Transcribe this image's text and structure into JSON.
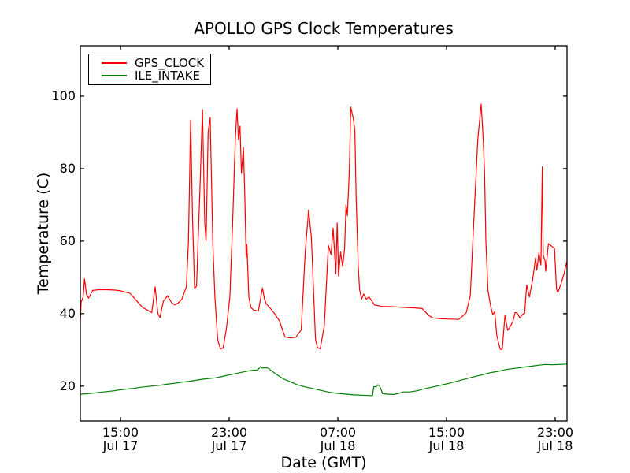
{
  "figure": {
    "background": "#ffffff",
    "title": "APOLLO GPS Clock Temperatures"
  },
  "chart_data": {
    "type": "line",
    "title": "APOLLO GPS Clock Temperatures",
    "xlabel": "Date (GMT)",
    "ylabel": "Temperature (C)",
    "x_unit": "hours since Jul 17 00:00 GMT",
    "xlim": [
      12.04,
      47.87
    ],
    "ylim": [
      10.4,
      113.9
    ],
    "grid": false,
    "tick_direction": "in",
    "x_ticks": [
      {
        "value": 15,
        "label": "15:00",
        "sublabel": "Jul 17"
      },
      {
        "value": 23,
        "label": "23:00",
        "sublabel": "Jul 17"
      },
      {
        "value": 31,
        "label": "07:00",
        "sublabel": "Jul 18"
      },
      {
        "value": 39,
        "label": "15:00",
        "sublabel": "Jul 18"
      },
      {
        "value": 47,
        "label": "23:00",
        "sublabel": "Jul 18"
      }
    ],
    "y_ticks": [
      20,
      40,
      60,
      80,
      100
    ],
    "legend": {
      "position": "upper left",
      "entries": [
        {
          "label": "GPS_CLOCK",
          "color": "#ff0000"
        },
        {
          "label": "ILE_INTAKE",
          "color": "#008000"
        }
      ]
    },
    "series": [
      {
        "name": "GPS_CLOCK",
        "color": "#ff0000",
        "points": [
          [
            12.05,
            38.5
          ],
          [
            12.1,
            43.2
          ],
          [
            12.25,
            44.6
          ],
          [
            12.35,
            49.6
          ],
          [
            12.5,
            45.2
          ],
          [
            12.65,
            44.3
          ],
          [
            12.95,
            46.4
          ],
          [
            13.4,
            46.6
          ],
          [
            14.0,
            46.6
          ],
          [
            14.6,
            46.5
          ],
          [
            15.0,
            46.3
          ],
          [
            15.7,
            45.6
          ],
          [
            16.2,
            43.5
          ],
          [
            16.6,
            41.8
          ],
          [
            17.0,
            40.9
          ],
          [
            17.3,
            40.3
          ],
          [
            17.55,
            47.4
          ],
          [
            17.75,
            40.0
          ],
          [
            17.9,
            38.9
          ],
          [
            18.15,
            43.4
          ],
          [
            18.45,
            44.9
          ],
          [
            18.75,
            43.1
          ],
          [
            19.0,
            42.4
          ],
          [
            19.25,
            43.0
          ],
          [
            19.5,
            43.9
          ],
          [
            19.85,
            47.4
          ],
          [
            20.0,
            60.0
          ],
          [
            20.16,
            93.4
          ],
          [
            20.3,
            66.0
          ],
          [
            20.45,
            47.0
          ],
          [
            20.6,
            47.6
          ],
          [
            20.85,
            75.0
          ],
          [
            21.03,
            96.3
          ],
          [
            21.2,
            65.0
          ],
          [
            21.3,
            60.0
          ],
          [
            21.45,
            90.0
          ],
          [
            21.6,
            94.1
          ],
          [
            21.8,
            59.0
          ],
          [
            21.95,
            44.6
          ],
          [
            22.15,
            33.0
          ],
          [
            22.35,
            30.3
          ],
          [
            22.55,
            30.5
          ],
          [
            22.8,
            36.0
          ],
          [
            23.05,
            44.6
          ],
          [
            23.25,
            65.0
          ],
          [
            23.45,
            88.0
          ],
          [
            23.58,
            96.5
          ],
          [
            23.68,
            88.0
          ],
          [
            23.8,
            91.7
          ],
          [
            23.9,
            78.7
          ],
          [
            24.05,
            85.9
          ],
          [
            24.15,
            72.2
          ],
          [
            24.25,
            55.4
          ],
          [
            24.3,
            59.1
          ],
          [
            24.45,
            44.6
          ],
          [
            24.6,
            41.7
          ],
          [
            24.8,
            41.0
          ],
          [
            25.15,
            40.7
          ],
          [
            25.45,
            47.1
          ],
          [
            25.6,
            44.0
          ],
          [
            25.75,
            42.6
          ],
          [
            26.0,
            41.6
          ],
          [
            26.3,
            40.2
          ],
          [
            26.7,
            38.0
          ],
          [
            27.1,
            33.6
          ],
          [
            27.5,
            33.3
          ],
          [
            27.9,
            33.5
          ],
          [
            28.3,
            35.5
          ],
          [
            28.6,
            57.0
          ],
          [
            28.85,
            68.6
          ],
          [
            29.05,
            61.0
          ],
          [
            29.15,
            52.0
          ],
          [
            29.35,
            33.0
          ],
          [
            29.5,
            30.6
          ],
          [
            29.7,
            30.3
          ],
          [
            30.0,
            36.6
          ],
          [
            30.3,
            58.8
          ],
          [
            30.5,
            56.3
          ],
          [
            30.65,
            63.6
          ],
          [
            30.85,
            51.0
          ],
          [
            30.95,
            65.0
          ],
          [
            31.05,
            50.4
          ],
          [
            31.2,
            57.0
          ],
          [
            31.35,
            53.0
          ],
          [
            31.5,
            58.0
          ],
          [
            31.6,
            70.0
          ],
          [
            31.7,
            67.0
          ],
          [
            31.85,
            80.0
          ],
          [
            31.95,
            97.0
          ],
          [
            32.15,
            93.5
          ],
          [
            32.25,
            90.4
          ],
          [
            32.35,
            71.7
          ],
          [
            32.5,
            53.0
          ],
          [
            32.6,
            46.7
          ],
          [
            32.75,
            44.0
          ],
          [
            32.9,
            45.4
          ],
          [
            33.1,
            44.0
          ],
          [
            33.3,
            44.6
          ],
          [
            33.7,
            42.4
          ],
          [
            34.25,
            42.0
          ],
          [
            35.1,
            41.9
          ],
          [
            36.0,
            41.7
          ],
          [
            36.6,
            41.6
          ],
          [
            37.2,
            41.4
          ],
          [
            37.7,
            39.5
          ],
          [
            38.0,
            38.8
          ],
          [
            38.6,
            38.6
          ],
          [
            39.3,
            38.5
          ],
          [
            39.9,
            38.4
          ],
          [
            40.45,
            40.2
          ],
          [
            40.75,
            45.0
          ],
          [
            41.0,
            65.0
          ],
          [
            41.3,
            88.0
          ],
          [
            41.55,
            97.8
          ],
          [
            41.7,
            88.0
          ],
          [
            41.8,
            79.0
          ],
          [
            41.9,
            60.0
          ],
          [
            42.05,
            46.4
          ],
          [
            42.25,
            42.0
          ],
          [
            42.4,
            39.7
          ],
          [
            42.55,
            40.5
          ],
          [
            42.7,
            34.0
          ],
          [
            42.95,
            30.2
          ],
          [
            43.1,
            30.1
          ],
          [
            43.3,
            39.5
          ],
          [
            43.5,
            35.4
          ],
          [
            43.7,
            36.5
          ],
          [
            43.9,
            38.0
          ],
          [
            44.05,
            40.3
          ],
          [
            44.2,
            40.2
          ],
          [
            44.4,
            38.8
          ],
          [
            44.6,
            39.8
          ],
          [
            44.75,
            40.1
          ],
          [
            44.9,
            47.9
          ],
          [
            45.1,
            44.6
          ],
          [
            45.35,
            49.5
          ],
          [
            45.55,
            55.3
          ],
          [
            45.65,
            52.0
          ],
          [
            45.8,
            56.8
          ],
          [
            45.95,
            53.4
          ],
          [
            46.05,
            80.5
          ],
          [
            46.12,
            56.0
          ],
          [
            46.25,
            54.7
          ],
          [
            46.3,
            51.7
          ],
          [
            46.5,
            59.3
          ],
          [
            46.75,
            58.6
          ],
          [
            46.95,
            58.0
          ],
          [
            47.1,
            46.8
          ],
          [
            47.2,
            45.8
          ],
          [
            47.45,
            48.5
          ],
          [
            47.65,
            51.0
          ],
          [
            47.85,
            54.3
          ]
        ]
      },
      {
        "name": "ILE_INTAKE",
        "color": "#008000",
        "points": [
          [
            12.05,
            17.8
          ],
          [
            12.5,
            17.9
          ],
          [
            13.0,
            18.1
          ],
          [
            13.5,
            18.3
          ],
          [
            14.0,
            18.5
          ],
          [
            14.5,
            18.7
          ],
          [
            15.0,
            19.0
          ],
          [
            15.5,
            19.2
          ],
          [
            16.0,
            19.4
          ],
          [
            16.5,
            19.7
          ],
          [
            17.0,
            19.9
          ],
          [
            17.5,
            20.1
          ],
          [
            18.0,
            20.3
          ],
          [
            18.5,
            20.6
          ],
          [
            19.0,
            20.8
          ],
          [
            19.5,
            21.1
          ],
          [
            20.0,
            21.3
          ],
          [
            20.5,
            21.6
          ],
          [
            21.0,
            21.9
          ],
          [
            21.5,
            22.1
          ],
          [
            22.0,
            22.3
          ],
          [
            22.4,
            22.6
          ],
          [
            23.0,
            23.1
          ],
          [
            23.5,
            23.5
          ],
          [
            24.0,
            23.9
          ],
          [
            24.4,
            24.2
          ],
          [
            24.8,
            24.4
          ],
          [
            25.1,
            24.5
          ],
          [
            25.3,
            25.4
          ],
          [
            25.45,
            25.0
          ],
          [
            25.7,
            25.1
          ],
          [
            25.9,
            24.9
          ],
          [
            26.1,
            24.3
          ],
          [
            26.5,
            23.2
          ],
          [
            27.0,
            22.0
          ],
          [
            27.5,
            21.2
          ],
          [
            28.0,
            20.4
          ],
          [
            28.6,
            19.8
          ],
          [
            29.2,
            19.3
          ],
          [
            29.8,
            18.8
          ],
          [
            30.4,
            18.3
          ],
          [
            31.0,
            18.0
          ],
          [
            31.6,
            17.8
          ],
          [
            32.2,
            17.6
          ],
          [
            32.8,
            17.5
          ],
          [
            33.3,
            17.4
          ],
          [
            33.55,
            17.4
          ],
          [
            33.65,
            19.9
          ],
          [
            33.8,
            19.8
          ],
          [
            33.95,
            20.4
          ],
          [
            34.1,
            19.9
          ],
          [
            34.3,
            17.9
          ],
          [
            34.7,
            17.8
          ],
          [
            35.1,
            17.7
          ],
          [
            35.5,
            18.0
          ],
          [
            35.8,
            18.4
          ],
          [
            36.3,
            18.4
          ],
          [
            36.8,
            18.7
          ],
          [
            37.4,
            19.3
          ],
          [
            38.0,
            19.8
          ],
          [
            38.6,
            20.3
          ],
          [
            39.2,
            20.8
          ],
          [
            39.8,
            21.4
          ],
          [
            40.4,
            22.0
          ],
          [
            41.0,
            22.6
          ],
          [
            41.6,
            23.1
          ],
          [
            42.2,
            23.7
          ],
          [
            42.8,
            24.1
          ],
          [
            43.4,
            24.6
          ],
          [
            44.0,
            24.9
          ],
          [
            44.6,
            25.2
          ],
          [
            45.2,
            25.5
          ],
          [
            45.8,
            25.8
          ],
          [
            46.3,
            26.0
          ],
          [
            46.8,
            25.9
          ],
          [
            47.3,
            26.0
          ],
          [
            47.85,
            26.1
          ]
        ]
      }
    ]
  }
}
